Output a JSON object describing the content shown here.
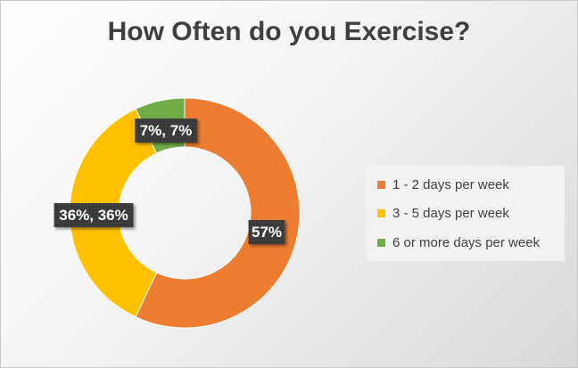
{
  "chart_data": {
    "type": "pie",
    "variant": "doughnut",
    "title": "How Often do you Exercise?",
    "categories": [
      "1 - 2 days per week",
      "3 - 5 days per week",
      "6 or more days per week"
    ],
    "values": [
      57,
      36,
      7
    ],
    "unit": "%",
    "data_labels": [
      "57%",
      "36%, 36%",
      "7%, 7%"
    ],
    "colors": [
      "#ed7d31",
      "#ffc000",
      "#70ad47"
    ],
    "legend_position": "right"
  }
}
